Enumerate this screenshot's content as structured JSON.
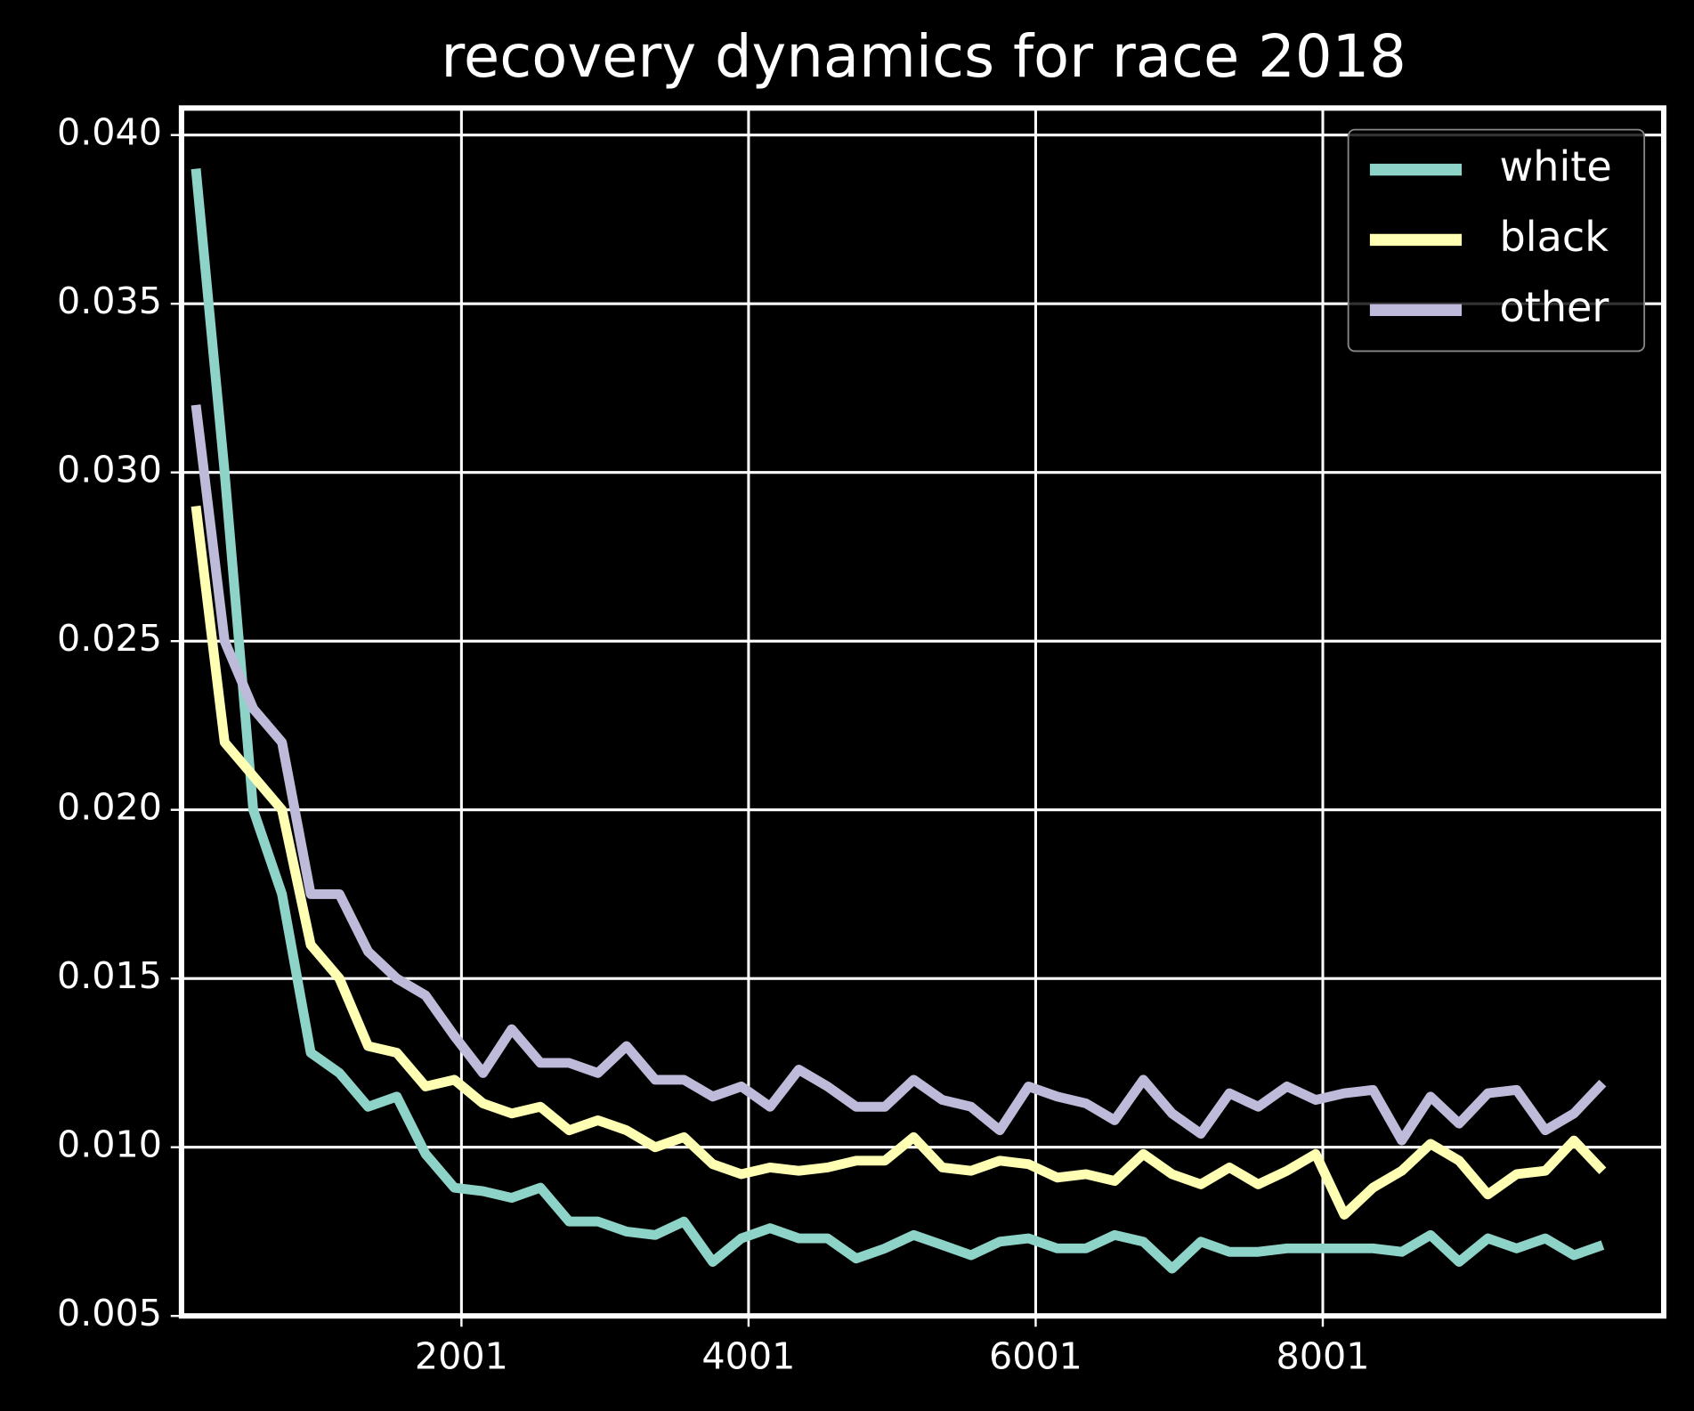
{
  "chart_data": {
    "type": "line",
    "title": "recovery dynamics for race 2018",
    "x": [
      151,
      351,
      551,
      751,
      951,
      1151,
      1351,
      1551,
      1751,
      1951,
      2151,
      2351,
      2551,
      2751,
      2951,
      3151,
      3351,
      3551,
      3751,
      3951,
      4151,
      4351,
      4551,
      4751,
      4951,
      5151,
      5351,
      5551,
      5751,
      5951,
      6151,
      6351,
      6551,
      6751,
      6951,
      7151,
      7351,
      7551,
      7751,
      7951,
      8151,
      8351,
      8551,
      8751,
      8951,
      9151,
      9351,
      9551,
      9751,
      9951
    ],
    "series": [
      {
        "name": "white",
        "color": "#8dd3c7",
        "values": [
          0.039,
          0.03,
          0.02,
          0.0175,
          0.0128,
          0.0122,
          0.0112,
          0.0115,
          0.0098,
          0.0088,
          0.0087,
          0.0085,
          0.0088,
          0.0078,
          0.0078,
          0.0075,
          0.0074,
          0.0078,
          0.0066,
          0.0073,
          0.0076,
          0.0073,
          0.0073,
          0.0067,
          0.007,
          0.0074,
          0.0071,
          0.0068,
          0.0072,
          0.0073,
          0.007,
          0.007,
          0.0074,
          0.0072,
          0.0064,
          0.0072,
          0.0069,
          0.0069,
          0.007,
          0.007,
          0.007,
          0.007,
          0.0069,
          0.0074,
          0.0066,
          0.0073,
          0.007,
          0.0073,
          0.0068,
          0.0071
        ]
      },
      {
        "name": "black",
        "color": "#ffffb3",
        "values": [
          0.029,
          0.022,
          0.021,
          0.02,
          0.016,
          0.015,
          0.013,
          0.0128,
          0.0118,
          0.012,
          0.0113,
          0.011,
          0.0112,
          0.0105,
          0.0108,
          0.0105,
          0.01,
          0.0103,
          0.0095,
          0.0092,
          0.0094,
          0.0093,
          0.0094,
          0.0096,
          0.0096,
          0.0103,
          0.0094,
          0.0093,
          0.0096,
          0.0095,
          0.0091,
          0.0092,
          0.009,
          0.0098,
          0.0092,
          0.0089,
          0.0094,
          0.0089,
          0.0093,
          0.0098,
          0.008,
          0.0088,
          0.0093,
          0.0101,
          0.0096,
          0.0086,
          0.0092,
          0.0093,
          0.0102,
          0.0093
        ]
      },
      {
        "name": "other",
        "color": "#bebada",
        "values": [
          0.032,
          0.025,
          0.023,
          0.022,
          0.0175,
          0.0175,
          0.0158,
          0.015,
          0.0145,
          0.0133,
          0.0122,
          0.0135,
          0.0125,
          0.0125,
          0.0122,
          0.013,
          0.012,
          0.012,
          0.0115,
          0.0118,
          0.0112,
          0.0123,
          0.0118,
          0.0112,
          0.0112,
          0.012,
          0.0114,
          0.0112,
          0.0105,
          0.0118,
          0.0115,
          0.0113,
          0.0108,
          0.012,
          0.011,
          0.0104,
          0.0116,
          0.0112,
          0.0118,
          0.0114,
          0.0116,
          0.0117,
          0.0102,
          0.0115,
          0.0107,
          0.0116,
          0.0117,
          0.0105,
          0.011,
          0.0119
        ]
      }
    ],
    "xlim": [
      51,
      10376
    ],
    "xticks": [
      2001,
      4001,
      6001,
      8001
    ],
    "ylim": [
      0.005,
      0.0408
    ],
    "yticks": [
      0.005,
      {
        "value": 0.01,
        "label": "0.010"
      },
      0.015,
      {
        "value": 0.02,
        "label": "0.020"
      },
      0.025,
      {
        "value": 0.03,
        "label": "0.030"
      },
      0.035,
      {
        "value": 0.04,
        "label": "0.040"
      }
    ],
    "grid": true,
    "legend": "upper right"
  }
}
